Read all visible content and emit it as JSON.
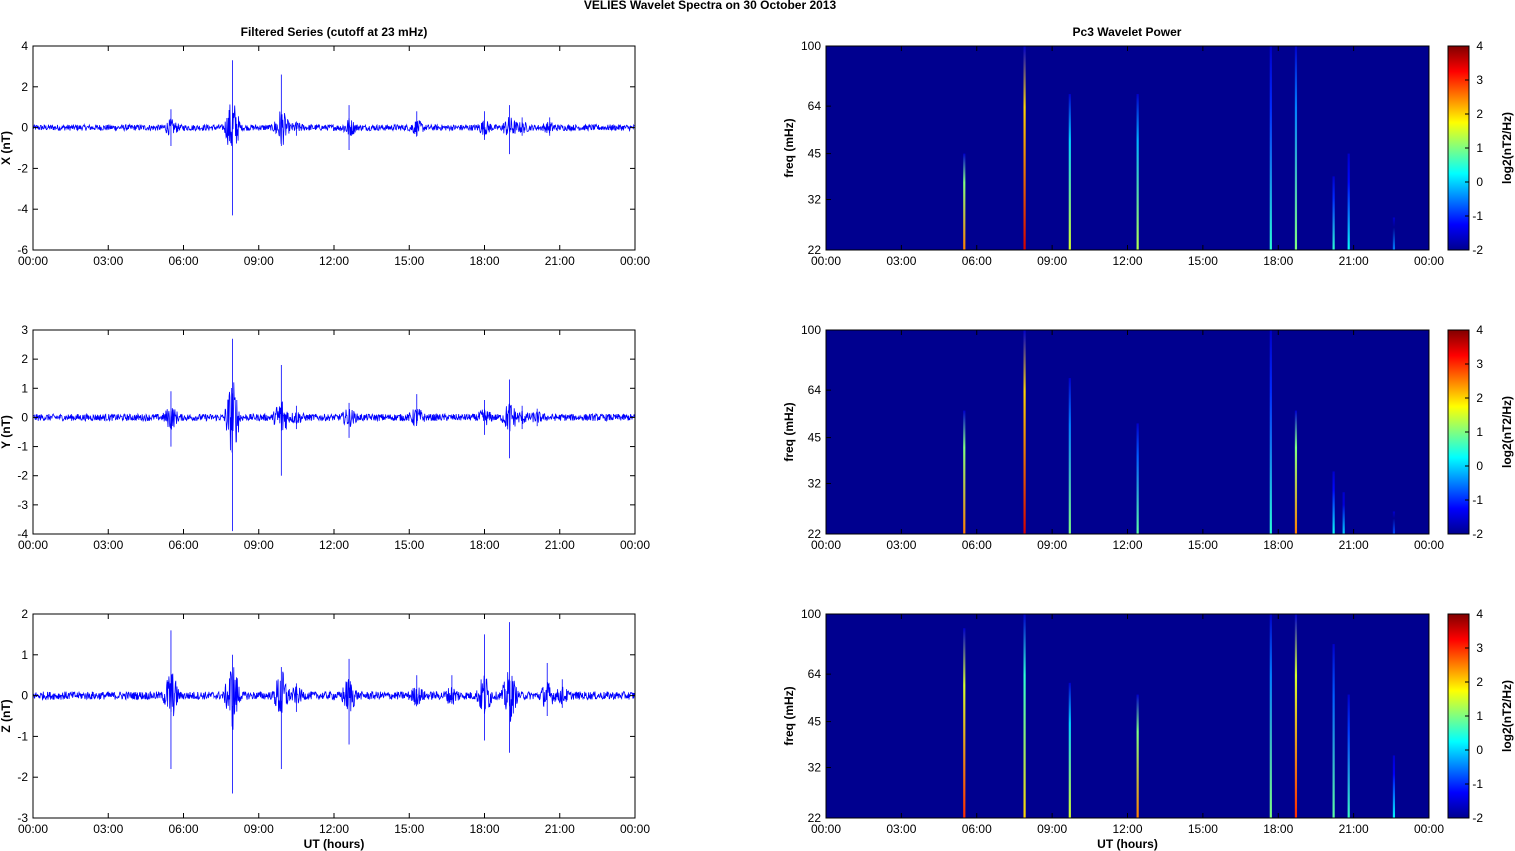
{
  "figure_title": "VELIES Wavelet Spectra on 30 October   2013",
  "left_title": "Filtered Series (cutoff at 23 mHz)",
  "right_title": "Pc3 Wavelet Power",
  "colorbar_label": "log2(nT2/Hz)",
  "colors": {
    "trace": "#0000ff",
    "bg_low": "#00008f"
  },
  "chart_data": [
    {
      "type": "line",
      "ylabel": "X (nT)",
      "ylim": [
        -6,
        4
      ],
      "yticks": [
        4,
        2,
        0,
        -2,
        -4,
        -6
      ],
      "xticks": [
        "00:00",
        "03:00",
        "06:00",
        "09:00",
        "12:00",
        "15:00",
        "18:00",
        "21:00",
        "00:00"
      ],
      "xlabel": "",
      "noise_amplitude": 0.15,
      "spikes": [
        {
          "t": 5.5,
          "up": 0.9,
          "down": -0.9
        },
        {
          "t": 7.95,
          "up": 3.3,
          "down": -4.3
        },
        {
          "t": 9.9,
          "up": 2.6,
          "down": -0.9
        },
        {
          "t": 10.5,
          "up": 0.3,
          "down": -0.4
        },
        {
          "t": 12.6,
          "up": 1.1,
          "down": -1.1
        },
        {
          "t": 15.3,
          "up": 0.8,
          "down": -0.2
        },
        {
          "t": 18.0,
          "up": 0.8,
          "down": -0.6
        },
        {
          "t": 19.0,
          "up": 1.1,
          "down": -1.3
        },
        {
          "t": 19.5,
          "up": 0.5,
          "down": -0.4
        },
        {
          "t": 20.6,
          "up": 0.5,
          "down": -0.4
        }
      ]
    },
    {
      "type": "line",
      "ylabel": "Y (nT)",
      "ylim": [
        -4,
        3
      ],
      "yticks": [
        3,
        2,
        1,
        0,
        -1,
        -2,
        -3,
        -4
      ],
      "xticks": [
        "00:00",
        "03:00",
        "06:00",
        "09:00",
        "12:00",
        "15:00",
        "18:00",
        "21:00",
        "00:00"
      ],
      "xlabel": "",
      "noise_amplitude": 0.12,
      "spikes": [
        {
          "t": 5.5,
          "up": 0.9,
          "down": -1.0
        },
        {
          "t": 7.95,
          "up": 2.7,
          "down": -3.9
        },
        {
          "t": 9.9,
          "up": 1.8,
          "down": -2.0
        },
        {
          "t": 10.5,
          "up": 0.4,
          "down": -0.4
        },
        {
          "t": 12.6,
          "up": 0.5,
          "down": -0.7
        },
        {
          "t": 15.3,
          "up": 0.8,
          "down": -0.2
        },
        {
          "t": 18.0,
          "up": 0.6,
          "down": -0.6
        },
        {
          "t": 19.0,
          "up": 1.3,
          "down": -1.4
        },
        {
          "t": 19.5,
          "up": 0.4,
          "down": -0.4
        },
        {
          "t": 20.1,
          "up": 0.3,
          "down": -0.3
        }
      ]
    },
    {
      "type": "line",
      "ylabel": "Z (nT)",
      "ylim": [
        -3,
        2
      ],
      "yticks": [
        2,
        1,
        0,
        -1,
        -2,
        -3
      ],
      "xticks": [
        "00:00",
        "03:00",
        "06:00",
        "09:00",
        "12:00",
        "15:00",
        "18:00",
        "21:00",
        "00:00"
      ],
      "xlabel": "UT (hours)",
      "noise_amplitude": 0.1,
      "spikes": [
        {
          "t": 5.5,
          "up": 1.6,
          "down": -1.8
        },
        {
          "t": 7.95,
          "up": 1.0,
          "down": -2.4
        },
        {
          "t": 9.9,
          "up": 0.7,
          "down": -1.8
        },
        {
          "t": 10.5,
          "up": 0.3,
          "down": -0.4
        },
        {
          "t": 12.6,
          "up": 0.9,
          "down": -1.2
        },
        {
          "t": 15.3,
          "up": 0.5,
          "down": -0.2
        },
        {
          "t": 16.7,
          "up": 0.5,
          "down": -0.2
        },
        {
          "t": 18.0,
          "up": 1.5,
          "down": -1.1
        },
        {
          "t": 19.0,
          "up": 1.8,
          "down": -1.4
        },
        {
          "t": 20.5,
          "up": 0.8,
          "down": -0.5
        },
        {
          "t": 21.1,
          "up": 0.4,
          "down": -0.3
        }
      ]
    },
    {
      "type": "heatmap",
      "ylabel": "freq (mHz)",
      "yticks": [
        100,
        64,
        45,
        32,
        22
      ],
      "ylim": [
        22,
        100
      ],
      "yscale": "log",
      "xticks": [
        "00:00",
        "03:00",
        "06:00",
        "09:00",
        "12:00",
        "15:00",
        "18:00",
        "21:00",
        "00:00"
      ],
      "xlabel": "",
      "colorbar": {
        "ticks": [
          4,
          3,
          2,
          1,
          0,
          -1,
          -2
        ],
        "range": [
          -2,
          4
        ]
      },
      "streaks": [
        {
          "t": 5.5,
          "top_freq": 45,
          "level": 2.5
        },
        {
          "t": 7.9,
          "top_freq": 100,
          "level": 3.5
        },
        {
          "t": 9.7,
          "top_freq": 70,
          "level": 1.5
        },
        {
          "t": 12.4,
          "top_freq": 70,
          "level": 1.3
        },
        {
          "t": 17.7,
          "top_freq": 100,
          "level": 0.5
        },
        {
          "t": 18.7,
          "top_freq": 100,
          "level": 1.0
        },
        {
          "t": 20.2,
          "top_freq": 38,
          "level": 0.5
        },
        {
          "t": 20.8,
          "top_freq": 45,
          "level": 0.3
        },
        {
          "t": 22.6,
          "top_freq": 28,
          "level": -0.5
        }
      ]
    },
    {
      "type": "heatmap",
      "ylabel": "freq (mHz)",
      "yticks": [
        100,
        64,
        45,
        32,
        22
      ],
      "ylim": [
        22,
        100
      ],
      "yscale": "log",
      "xticks": [
        "00:00",
        "03:00",
        "06:00",
        "09:00",
        "12:00",
        "15:00",
        "18:00",
        "21:00",
        "00:00"
      ],
      "xlabel": "",
      "colorbar": {
        "ticks": [
          4,
          3,
          2,
          1,
          0,
          -1,
          -2
        ],
        "range": [
          -2,
          4
        ]
      },
      "streaks": [
        {
          "t": 5.5,
          "top_freq": 55,
          "level": 2.5
        },
        {
          "t": 7.9,
          "top_freq": 100,
          "level": 3.5
        },
        {
          "t": 9.7,
          "top_freq": 70,
          "level": 1.0
        },
        {
          "t": 12.4,
          "top_freq": 50,
          "level": 0.8
        },
        {
          "t": 17.7,
          "top_freq": 100,
          "level": 0.5
        },
        {
          "t": 18.7,
          "top_freq": 55,
          "level": 2.5
        },
        {
          "t": 20.2,
          "top_freq": 35,
          "level": 0.3
        },
        {
          "t": 20.6,
          "top_freq": 30,
          "level": 0.0
        },
        {
          "t": 22.6,
          "top_freq": 26,
          "level": -0.8
        }
      ]
    },
    {
      "type": "heatmap",
      "ylabel": "freq (mHz)",
      "yticks": [
        100,
        64,
        45,
        32,
        22
      ],
      "ylim": [
        22,
        100
      ],
      "yscale": "log",
      "xticks": [
        "00:00",
        "03:00",
        "06:00",
        "09:00",
        "12:00",
        "15:00",
        "18:00",
        "21:00",
        "00:00"
      ],
      "xlabel": "UT (hours)",
      "colorbar": {
        "ticks": [
          4,
          3,
          2,
          1,
          0,
          -1,
          -2
        ],
        "range": [
          -2,
          4
        ]
      },
      "streaks": [
        {
          "t": 5.5,
          "top_freq": 90,
          "level": 3.0
        },
        {
          "t": 7.9,
          "top_freq": 100,
          "level": 2.0
        },
        {
          "t": 9.7,
          "top_freq": 60,
          "level": 1.5
        },
        {
          "t": 12.4,
          "top_freq": 55,
          "level": 2.5
        },
        {
          "t": 17.7,
          "top_freq": 100,
          "level": 1.0
        },
        {
          "t": 18.7,
          "top_freq": 100,
          "level": 3.0
        },
        {
          "t": 20.2,
          "top_freq": 80,
          "level": 0.8
        },
        {
          "t": 20.8,
          "top_freq": 55,
          "level": 0.6
        },
        {
          "t": 22.6,
          "top_freq": 35,
          "level": 0.2
        }
      ]
    }
  ]
}
